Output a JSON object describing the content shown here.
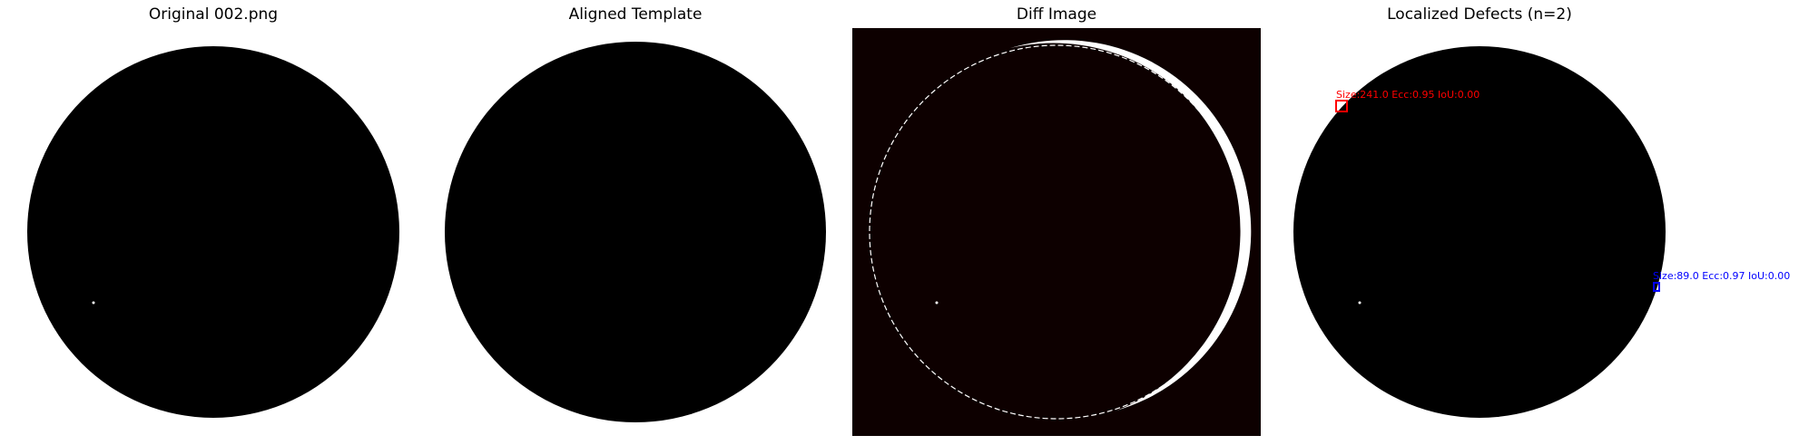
{
  "panels": [
    {
      "title": "Original 002.png"
    },
    {
      "title": "Aligned Template"
    },
    {
      "title": "Diff Image"
    },
    {
      "title": "Localized Defects (n=2)"
    }
  ],
  "defects": [
    {
      "label": "Size:241.0 Ecc:0.95 IoU:0.00",
      "color": "#ff0000"
    },
    {
      "label": "Size:89.0 Ecc:0.97 IoU:0.00",
      "color": "#0000ff"
    }
  ],
  "colors": {
    "disk": "#000000",
    "diff_background": "#0d0000",
    "diff_highlight": "#ffffff"
  }
}
